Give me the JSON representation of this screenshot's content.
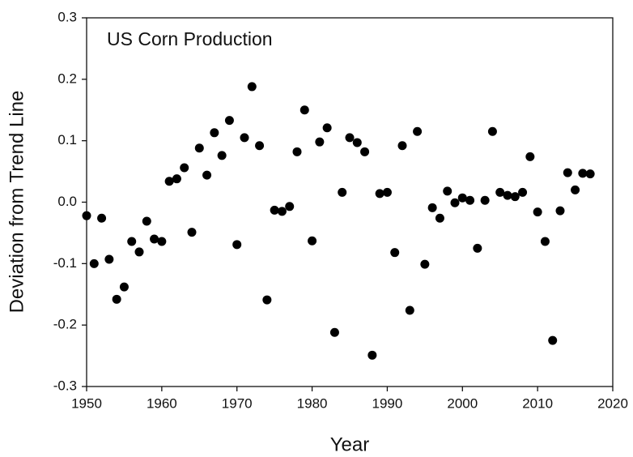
{
  "chart_data": {
    "type": "scatter",
    "annotation": "US Corn Production",
    "x_label": "Year",
    "y_label": "Deviation from Trend Line",
    "color": "#000000",
    "x": [
      1950,
      1951,
      1952,
      1953,
      1954,
      1955,
      1956,
      1957,
      1958,
      1959,
      1960,
      1961,
      1962,
      1963,
      1964,
      1965,
      1966,
      1967,
      1968,
      1969,
      1970,
      1971,
      1972,
      1973,
      1974,
      1975,
      1976,
      1977,
      1978,
      1979,
      1980,
      1981,
      1982,
      1983,
      1984,
      1985,
      1986,
      1987,
      1988,
      1989,
      1990,
      1991,
      1992,
      1993,
      1994,
      1995,
      1996,
      1997,
      1998,
      1999,
      2000,
      2001,
      2002,
      2003,
      2004,
      2005,
      2006,
      2007,
      2008,
      2009,
      2010,
      2011,
      2012,
      2013,
      2014,
      2015,
      2016,
      2017
    ],
    "values": [
      -0.022,
      -0.1,
      -0.026,
      -0.093,
      -0.158,
      -0.138,
      -0.064,
      -0.081,
      -0.031,
      -0.06,
      -0.064,
      0.034,
      0.038,
      0.056,
      -0.049,
      0.088,
      0.044,
      0.113,
      0.076,
      0.133,
      -0.069,
      0.105,
      0.188,
      0.092,
      -0.159,
      -0.013,
      -0.015,
      -0.007,
      0.082,
      0.15,
      -0.063,
      0.098,
      0.121,
      -0.212,
      0.016,
      0.105,
      0.097,
      0.082,
      -0.249,
      0.014,
      0.016,
      -0.082,
      0.092,
      -0.176,
      0.115,
      -0.101,
      -0.009,
      -0.026,
      0.018,
      -0.001,
      0.007,
      0.003,
      -0.075,
      0.003,
      0.115,
      0.016,
      0.011,
      0.009,
      0.016,
      0.074,
      -0.016,
      -0.064,
      -0.225,
      -0.014,
      0.048,
      0.02,
      0.047,
      0.046
    ],
    "xlim": [
      1950,
      2020
    ],
    "xticks": [
      1950,
      1960,
      1970,
      1980,
      1990,
      2000,
      2010,
      2020
    ],
    "ylim": [
      -0.3,
      0.3
    ],
    "yticks": [
      -0.3,
      -0.2,
      -0.1,
      {
        "value": 0,
        "label": "0.0"
      },
      0.1,
      0.2,
      0.3
    ]
  }
}
